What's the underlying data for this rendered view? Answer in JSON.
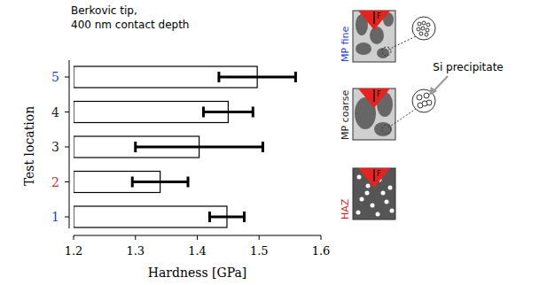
{
  "chart_data": {
    "type": "bar",
    "orientation": "horizontal",
    "annotations": [
      "Berkovic tip,",
      "400 nm contact depth"
    ],
    "x_label": "Hardness [GPa]",
    "y_label": "Test location",
    "categories": [
      "1",
      "2",
      "3",
      "4",
      "5"
    ],
    "values": [
      1.448,
      1.34,
      1.403,
      1.45,
      1.497
    ],
    "errors": [
      0.028,
      0.045,
      0.103,
      0.04,
      0.062
    ],
    "xlim": [
      1.2,
      1.6
    ],
    "xticks": [
      1.2,
      1.3,
      1.4,
      1.5,
      1.6
    ],
    "grid": false
  },
  "schematic": {
    "panels": [
      {
        "label": "MP fine"
      },
      {
        "label": "MP coarse"
      },
      {
        "label": "HAZ"
      }
    ],
    "callout": "Si precipitate"
  }
}
